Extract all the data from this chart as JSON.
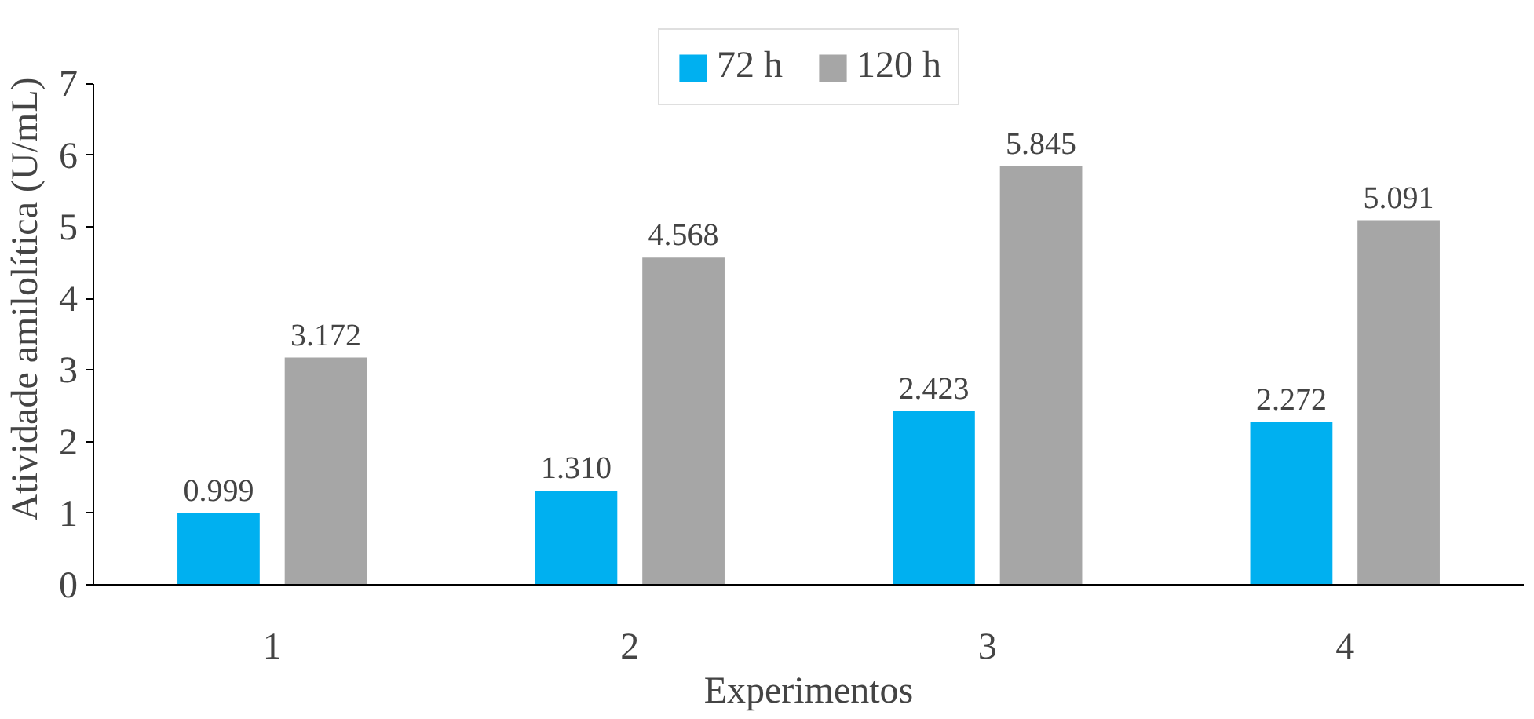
{
  "chart_data": {
    "type": "bar",
    "xlabel": "Experimentos",
    "ylabel": "Atividade amilolítica (U/mL)",
    "categories": [
      "1",
      "2",
      "3",
      "4"
    ],
    "series": [
      {
        "name": "72 h",
        "color": "#00b0f0",
        "values": [
          0.999,
          1.31,
          2.423,
          2.272
        ],
        "value_labels": [
          "0.999",
          "1.310",
          "2.423",
          "2.272"
        ]
      },
      {
        "name": "120 h",
        "color": "#a6a6a6",
        "values": [
          3.172,
          4.568,
          5.845,
          5.091
        ],
        "value_labels": [
          "3.172",
          "4.568",
          "5.845",
          "5.091"
        ]
      }
    ],
    "ylim": [
      0,
      7
    ],
    "yticks": [
      0,
      1,
      2,
      3,
      4,
      5,
      6,
      7
    ],
    "grid": false,
    "legend": "top"
  }
}
